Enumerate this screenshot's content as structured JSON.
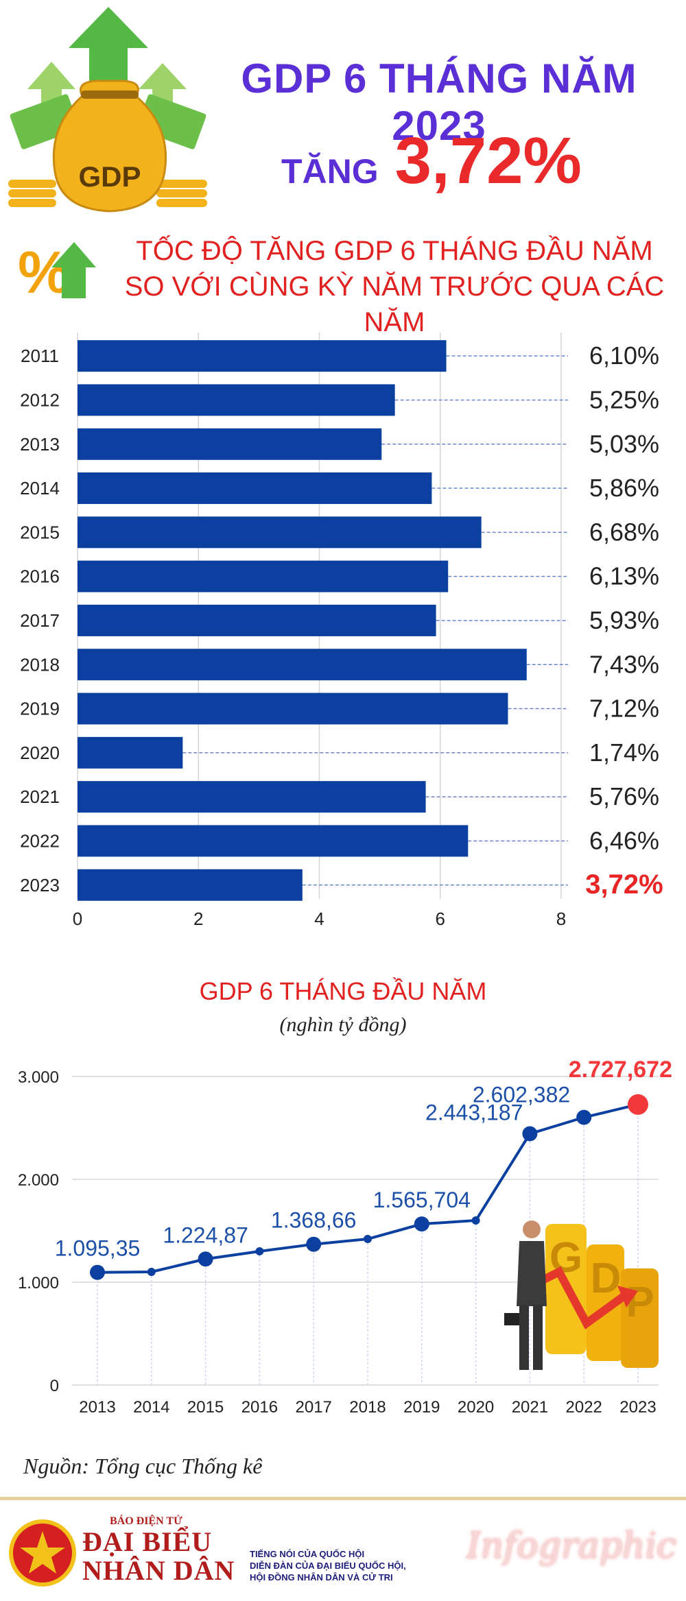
{
  "header": {
    "title": "GDP 6 THÁNG NĂM 2023",
    "subtitle_label": "TĂNG",
    "subtitle_value": "3,72%",
    "bag_label": "GDP"
  },
  "chart_data": [
    {
      "type": "bar",
      "orientation": "horizontal",
      "title_line1": "TỐC ĐỘ TĂNG GDP 6 THÁNG ĐẦU NĂM",
      "title_line2": "SO VỚI CÙNG KỲ NĂM TRƯỚC QUA CÁC NĂM",
      "categories": [
        "2011",
        "2012",
        "2013",
        "2014",
        "2015",
        "2016",
        "2017",
        "2018",
        "2019",
        "2020",
        "2021",
        "2022",
        "2023"
      ],
      "values": [
        6.1,
        5.25,
        5.03,
        5.86,
        6.68,
        6.13,
        5.93,
        7.43,
        7.12,
        1.74,
        5.76,
        6.46,
        3.72
      ],
      "value_labels": [
        "6,10%",
        "5,25%",
        "5,03%",
        "5,86%",
        "6,68%",
        "6,13%",
        "5,93%",
        "7,43%",
        "7,12%",
        "1,74%",
        "5,76%",
        "6,46%",
        "3,72%"
      ],
      "highlight_index": 12,
      "xlim": [
        0,
        8
      ],
      "xticks": [
        0,
        2,
        4,
        6,
        8
      ],
      "grid": true,
      "bar_color": "#0b3fa0",
      "highlight_color": "#e82424"
    },
    {
      "type": "line",
      "title": "GDP 6 THÁNG ĐẦU NĂM",
      "unit": "(nghìn tỷ đồng)",
      "x": [
        "2013",
        "2014",
        "2015",
        "2016",
        "2017",
        "2018",
        "2019",
        "2020",
        "2021",
        "2022",
        "2023"
      ],
      "values": [
        1095.35,
        1100,
        1224.87,
        1300,
        1368.66,
        1420,
        1565.704,
        1600,
        2443.187,
        2602.382,
        2727.672
      ],
      "labeled_points": [
        0,
        2,
        4,
        6,
        8,
        9,
        10
      ],
      "point_labels": {
        "0": "1.095,35",
        "2": "1.224,87",
        "4": "1.368,66",
        "6": "1.565,704",
        "8": "2.443,187",
        "9": "2.602,382",
        "10": "2.727,672"
      },
      "ylim": [
        0,
        3000
      ],
      "yticks": [
        0,
        1000,
        2000,
        3000
      ],
      "ytick_labels": [
        "0",
        "1.000",
        "2.000",
        "3.000"
      ],
      "grid": true,
      "line_color": "#0b3fa0",
      "highlight_color": "#f2383a"
    }
  ],
  "source": "Nguồn: Tổng cục Thống kê",
  "footer": {
    "brand_small": "BÁO ĐIỆN TỬ",
    "brand_line1": "ĐẠI BIỂU",
    "brand_line2": "NHÂN DÂN",
    "tagline1": "TIẾNG NÓI CỦA QUỐC HỘI",
    "tagline2": "DIỄN ĐÀN CỦA ĐẠI BIỂU QUỐC HỘI,",
    "tagline3": "HỘI ĐỒNG NHÂN DÂN VÀ CỬ TRI",
    "infographic": "Infographic"
  },
  "colors": {
    "header_purple": "#5b2fd6",
    "accent_red": "#e12020",
    "bar_blue": "#0b3fa0",
    "line_blue": "#0b3fa0"
  }
}
